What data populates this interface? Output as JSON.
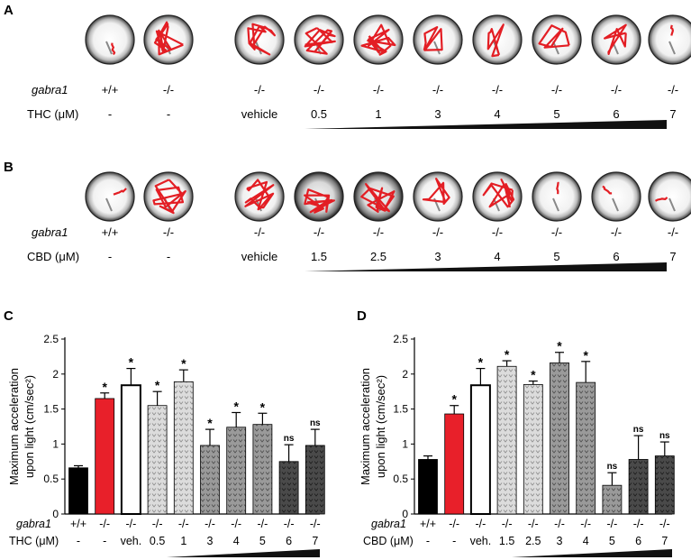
{
  "panels": {
    "A": {
      "label": "A",
      "genotype_label": "gabra1",
      "dose_label": "THC (μM)",
      "columns": [
        {
          "genotype": "+/+",
          "dose": "-",
          "path": "short"
        },
        {
          "genotype": "-/-",
          "dose": "-",
          "path": "dense"
        },
        {
          "genotype": "-/-",
          "dose": "vehicle",
          "path": "dense"
        },
        {
          "genotype": "-/-",
          "dose": "0.5",
          "path": "dense"
        },
        {
          "genotype": "-/-",
          "dose": "1",
          "path": "dense"
        },
        {
          "genotype": "-/-",
          "dose": "3",
          "path": "medium"
        },
        {
          "genotype": "-/-",
          "dose": "4",
          "path": "medium"
        },
        {
          "genotype": "-/-",
          "dose": "5",
          "path": "medium"
        },
        {
          "genotype": "-/-",
          "dose": "6",
          "path": "medium"
        },
        {
          "genotype": "-/-",
          "dose": "7",
          "path": "short"
        }
      ]
    },
    "B": {
      "label": "B",
      "genotype_label": "gabra1",
      "dose_label": "CBD (μM)",
      "columns": [
        {
          "genotype": "+/+",
          "dose": "-",
          "path": "short"
        },
        {
          "genotype": "-/-",
          "dose": "-",
          "path": "dense"
        },
        {
          "genotype": "-/-",
          "dose": "vehicle",
          "path": "dense"
        },
        {
          "genotype": "-/-",
          "dose": "1.5",
          "path": "dense"
        },
        {
          "genotype": "-/-",
          "dose": "2.5",
          "path": "dense"
        },
        {
          "genotype": "-/-",
          "dose": "3",
          "path": "medium"
        },
        {
          "genotype": "-/-",
          "dose": "4",
          "path": "dense"
        },
        {
          "genotype": "-/-",
          "dose": "5",
          "path": "short"
        },
        {
          "genotype": "-/-",
          "dose": "6",
          "path": "short"
        },
        {
          "genotype": "-/-",
          "dose": "7",
          "path": "short"
        }
      ]
    }
  },
  "chart_data": [
    {
      "panel": "C",
      "type": "bar",
      "ylabel_line1": "Maximum acceleration",
      "ylabel_line2": "upon light (cm/sec²)",
      "ylim": [
        0,
        2.5
      ],
      "yticks": [
        "0",
        "0.5",
        "1",
        "1.5",
        "2",
        "2.5"
      ],
      "row_label_genotype": "gabra1",
      "row_label_dose": "THC (μM)",
      "genotypes": [
        "+/+",
        "-/-",
        "-/-",
        "-/-",
        "-/-",
        "-/-",
        "-/-",
        "-/-",
        "-/-",
        "-/-"
      ],
      "doses": [
        "-",
        "-",
        "veh.",
        "0.5",
        "1",
        "3",
        "4",
        "5",
        "6",
        "7"
      ],
      "values": [
        0.66,
        1.65,
        1.84,
        1.55,
        1.89,
        0.98,
        1.24,
        1.28,
        0.75,
        0.98
      ],
      "errors": [
        0.03,
        0.08,
        0.24,
        0.2,
        0.17,
        0.23,
        0.21,
        0.16,
        0.24,
        0.23
      ],
      "significance": [
        "",
        "*",
        "*",
        "*",
        "*",
        "*",
        "*",
        "*",
        "ns",
        "ns"
      ],
      "bar_styles": [
        "black",
        "red",
        "white",
        "lightdots",
        "lightdots",
        "dots",
        "dots",
        "dots",
        "darkdots",
        "darkdots"
      ]
    },
    {
      "panel": "D",
      "type": "bar",
      "ylabel_line1": "Maximum acceleration",
      "ylabel_line2": "upon light (cm/sec²)",
      "ylim": [
        0,
        2.5
      ],
      "yticks": [
        "0",
        "0.5",
        "1",
        "1.5",
        "2",
        "2.5"
      ],
      "row_label_genotype": "gabra1",
      "row_label_dose": "CBD (μM)",
      "genotypes": [
        "+/+",
        "-/-",
        "-/-",
        "-/-",
        "-/-",
        "-/-",
        "-/-",
        "-/-",
        "-/-",
        "-/-"
      ],
      "doses": [
        "-",
        "-",
        "veh.",
        "1.5",
        "2.5",
        "3",
        "4",
        "5",
        "6",
        "7"
      ],
      "values": [
        0.78,
        1.43,
        1.84,
        2.11,
        1.85,
        2.16,
        1.88,
        0.41,
        0.78,
        0.83
      ],
      "errors": [
        0.05,
        0.12,
        0.24,
        0.08,
        0.05,
        0.15,
        0.3,
        0.18,
        0.34,
        0.2
      ],
      "significance": [
        "",
        "*",
        "*",
        "*",
        "*",
        "*",
        "*",
        "ns",
        "ns",
        "ns"
      ],
      "bar_styles": [
        "black",
        "red",
        "white",
        "lightdots",
        "lightdots",
        "dots",
        "dots",
        "dots",
        "darkdots",
        "darkdots"
      ]
    }
  ],
  "colors": {
    "red": "#e8202a",
    "black": "#000000",
    "path_red": "#e31e24"
  }
}
